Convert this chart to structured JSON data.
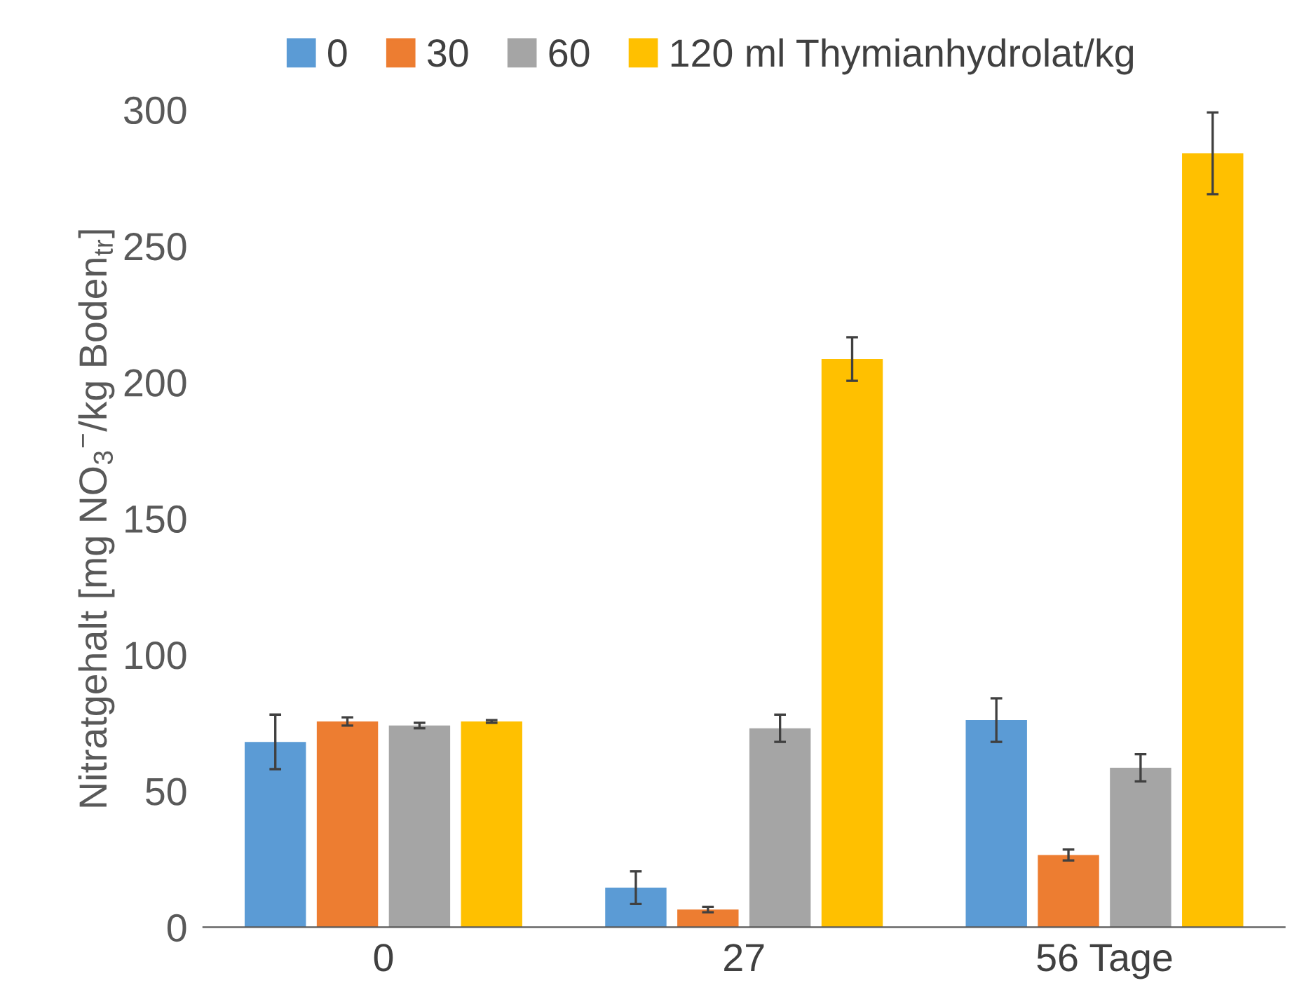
{
  "chart_data": {
    "type": "bar",
    "ylabel": "Nitratgehalt [mg NO$_{3}$$^{−}$/kg Boden$_{tr}$]",
    "categories": [
      "0",
      "27",
      "56 Tage"
    ],
    "series": [
      {
        "name": "0",
        "color": "#5b9bd5",
        "values": [
          68,
          14.5,
          76
        ],
        "errors": [
          10,
          6,
          8
        ]
      },
      {
        "name": "30",
        "color": "#ed7d31",
        "values": [
          75.5,
          6.5,
          26.5
        ],
        "errors": [
          1.5,
          1,
          2
        ]
      },
      {
        "name": "60",
        "color": "#a5a5a5",
        "values": [
          74,
          73,
          58.5
        ],
        "errors": [
          1,
          5,
          5
        ]
      },
      {
        "name": "120 ml Thymianhydrolat/kg",
        "color": "#ffc000",
        "values": [
          75.5,
          208.5,
          284
        ],
        "errors": [
          0.5,
          8,
          15
        ]
      }
    ],
    "ylim": [
      0,
      300
    ],
    "yticks": [
      0,
      50,
      100,
      150,
      200,
      250,
      300
    ],
    "grid": false,
    "legend": "top"
  }
}
